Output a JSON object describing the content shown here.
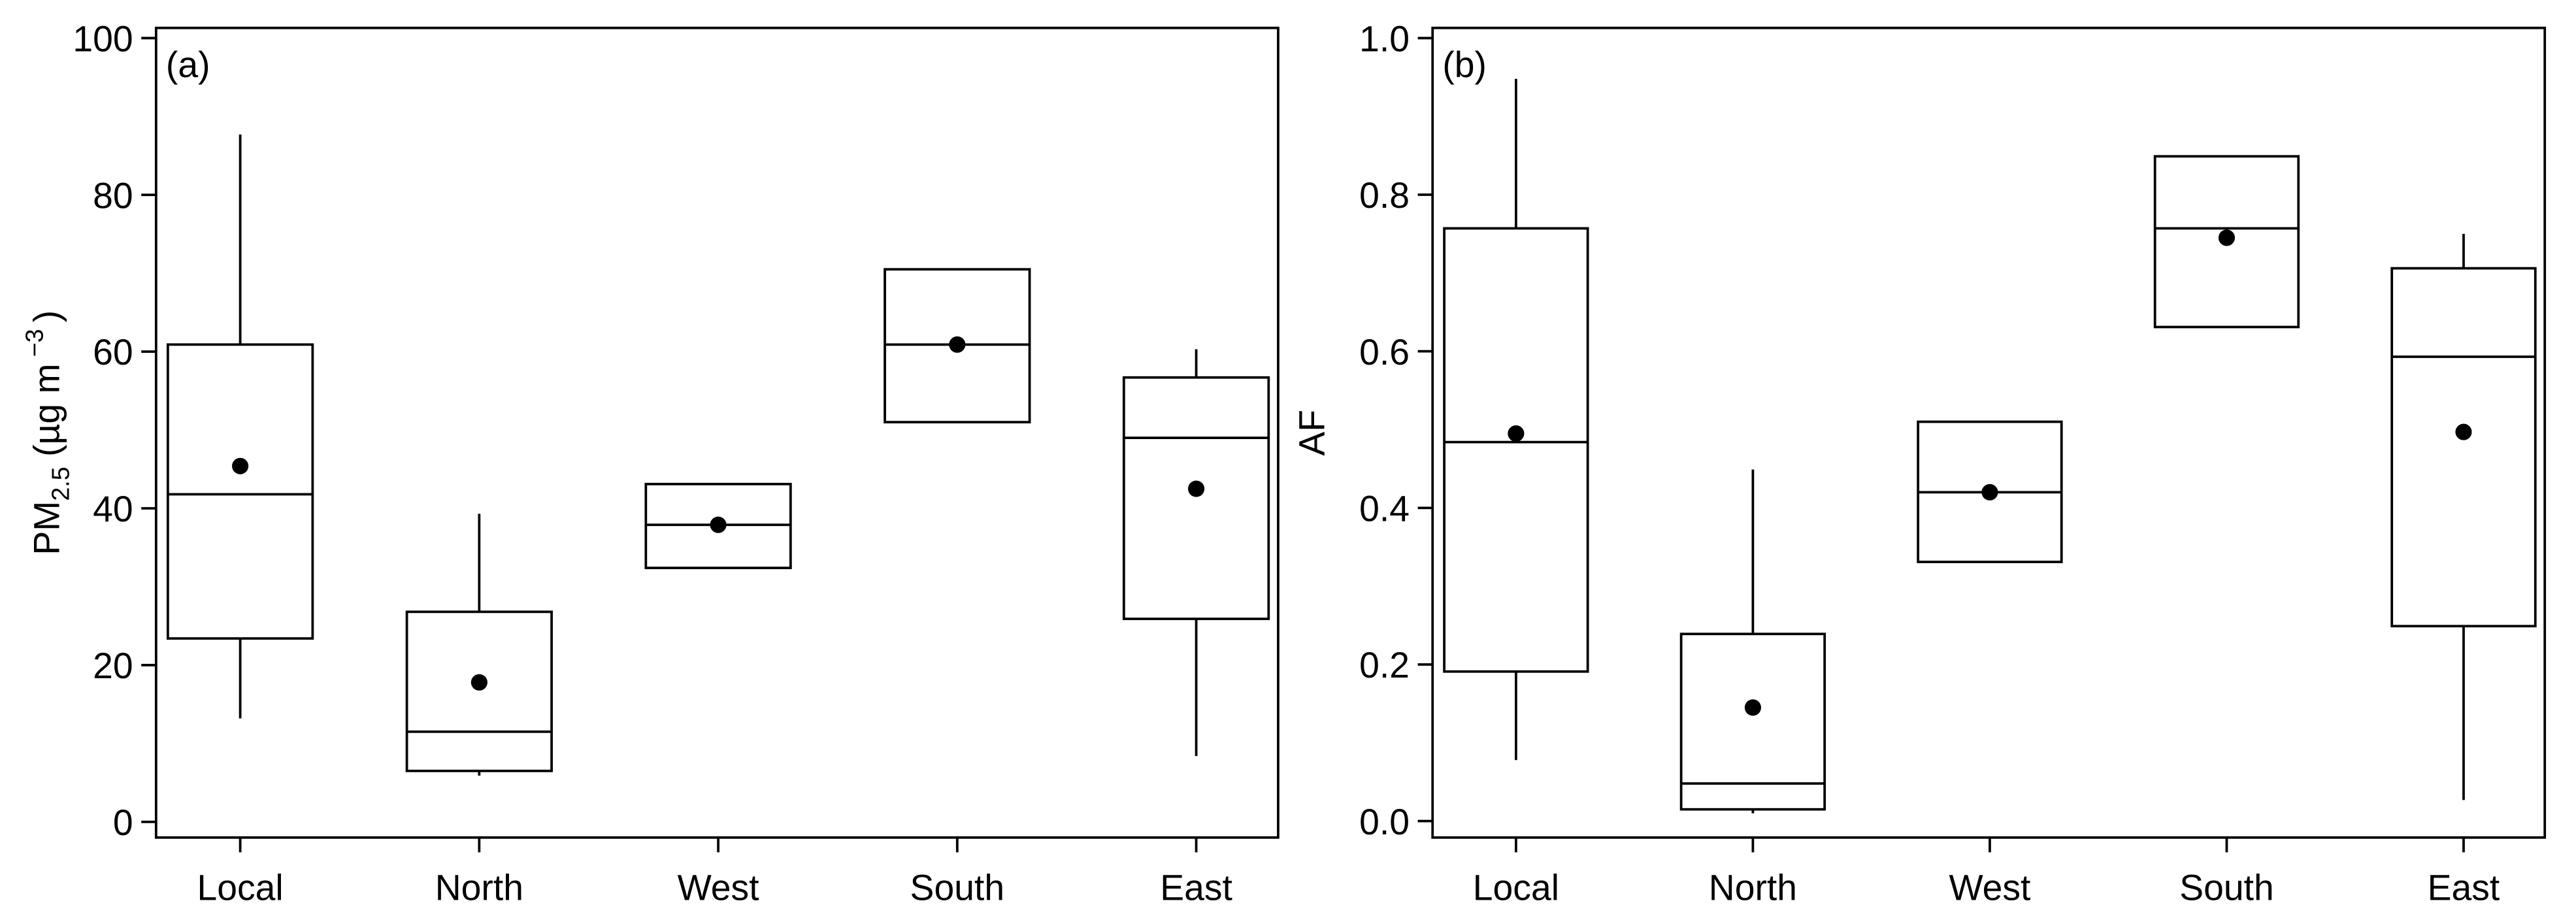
{
  "chart_data": [
    {
      "type": "box",
      "panel_label": "(a)",
      "ylabel": [
        "PM",
        "2.5",
        " (µg m",
        "−3",
        ")"
      ],
      "categories": [
        "Local",
        "North",
        "West",
        "South",
        "East"
      ],
      "whisker_high": [
        87.7,
        39.3,
        null,
        null,
        60.3
      ],
      "q3": [
        60.9,
        26.8,
        43.1,
        70.5,
        56.7
      ],
      "median": [
        41.8,
        11.5,
        37.9,
        60.9,
        49.0
      ],
      "q1": [
        23.4,
        6.5,
        32.4,
        51.0,
        25.9
      ],
      "whisker_low": [
        13.2,
        5.9,
        null,
        null,
        8.4
      ],
      "mean": [
        45.4,
        17.8,
        37.9,
        60.9,
        42.5
      ],
      "color": "#000000",
      "ylim": [
        -2,
        101.3
      ],
      "yticks": [
        0,
        20,
        40,
        60,
        80,
        100
      ]
    },
    {
      "type": "box",
      "panel_label": "(b)",
      "ylabel": [
        "AF"
      ],
      "categories": [
        "Local",
        "North",
        "West",
        "South",
        "East"
      ],
      "whisker_high": [
        0.948,
        0.449,
        null,
        null,
        0.75
      ],
      "q3": [
        0.757,
        0.239,
        0.51,
        0.849,
        0.706
      ],
      "median": [
        0.484,
        0.048,
        0.42,
        0.757,
        0.593
      ],
      "q1": [
        0.191,
        0.015,
        0.331,
        0.631,
        0.249
      ],
      "whisker_low": [
        0.078,
        0.01,
        null,
        null,
        0.027
      ],
      "mean": [
        0.495,
        0.145,
        0.42,
        0.745,
        0.497
      ],
      "color": "#000000",
      "ylim": [
        -0.021,
        1.013
      ],
      "yticks": [
        {
          "value": 0,
          "label": "0.0"
        },
        {
          "value": 0.2,
          "label": "0.2"
        },
        {
          "value": 0.4,
          "label": "0.4"
        },
        {
          "value": 0.6,
          "label": "0.6"
        },
        {
          "value": 0.8,
          "label": "0.8"
        },
        {
          "value": 1,
          "label": "1.0"
        }
      ]
    }
  ]
}
